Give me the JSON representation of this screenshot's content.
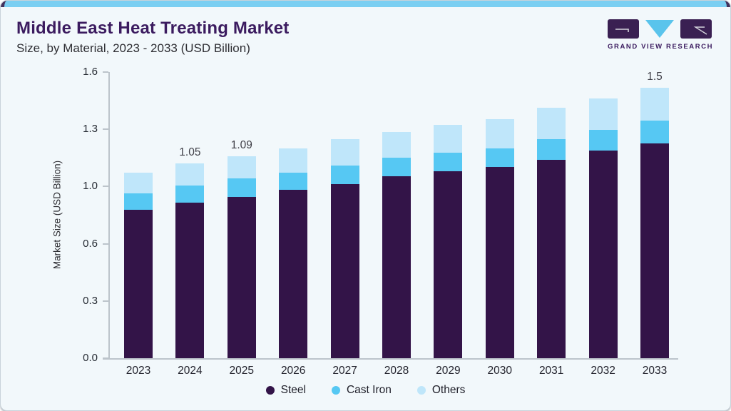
{
  "header": {
    "title": "Middle East Heat Treating Market",
    "subtitle": "Size, by Material, 2023 - 2033 (USD Billion)"
  },
  "logo": {
    "brand": "GRAND VIEW RESEARCH",
    "purple": "#3a2052",
    "blue": "#5ac4ec"
  },
  "chart_data": {
    "type": "bar",
    "stacked": true,
    "title": "Middle East Heat Treating Market",
    "subtitle": "Size, by Material, 2023 - 2033 (USD Billion)",
    "xlabel": "",
    "ylabel": "Market Size (USD Billion)",
    "categories": [
      "2023",
      "2024",
      "2025",
      "2026",
      "2027",
      "2028",
      "2029",
      "2030",
      "2031",
      "2032",
      "2033"
    ],
    "series": [
      {
        "name": "Steel",
        "color": "#331448",
        "values": [
          0.8,
          0.84,
          0.87,
          0.91,
          0.94,
          0.98,
          1.01,
          1.03,
          1.07,
          1.12,
          1.16
        ]
      },
      {
        "name": "Cast Iron",
        "color": "#56c8f3",
        "values": [
          0.09,
          0.09,
          0.1,
          0.09,
          0.1,
          0.1,
          0.1,
          0.1,
          0.11,
          0.11,
          0.12
        ]
      },
      {
        "name": "Others",
        "color": "#bfe6fa",
        "values": [
          0.11,
          0.12,
          0.12,
          0.13,
          0.14,
          0.14,
          0.15,
          0.16,
          0.17,
          0.17,
          0.18
        ]
      }
    ],
    "totals": [
      1.0,
      1.05,
      1.09,
      1.13,
      1.18,
      1.22,
      1.26,
      1.29,
      1.35,
      1.4,
      1.46
    ],
    "bar_value_labels": {
      "2024": "1.05",
      "2025": "1.09",
      "2033": "1.5"
    },
    "ylim": [
      0,
      1.6
    ],
    "ytick_labels": [
      "0.0",
      "0.3",
      "0.6",
      "1.0",
      "1.3",
      "1.6"
    ],
    "grid": false,
    "legend_position": "bottom",
    "legend": [
      "Steel",
      "Cast Iron",
      "Others"
    ]
  },
  "colors": {
    "card_bg": "#f2f8fb",
    "top_accent": "#7bcff2",
    "top_accent_edge": "#43315c",
    "title": "#3b1b5f",
    "axis": "#bcc4cb",
    "steel": "#331448",
    "cast_iron": "#56c8f3",
    "others": "#bfe6fa"
  }
}
